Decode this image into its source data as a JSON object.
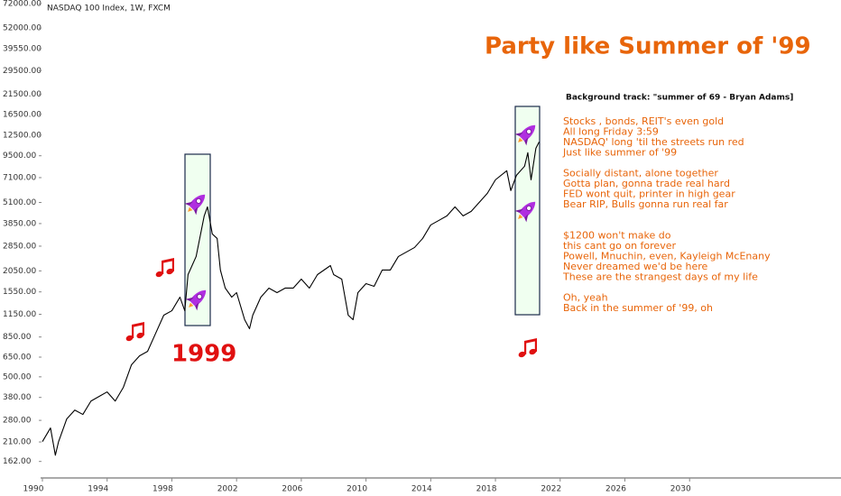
{
  "chart_data": {
    "type": "line",
    "title": "NASDAQ 100 Index, 1W, FXCM",
    "log_scale": true,
    "color": "#000000",
    "xlim": [
      1990,
      2039
    ],
    "ylim": [
      130,
      76000
    ],
    "xticks": [
      1990,
      1994,
      1998,
      2002,
      2006,
      2010,
      2014,
      2018,
      2022,
      2026,
      2030
    ],
    "yticks": [
      {
        "value": 72000,
        "label": "72000.00"
      },
      {
        "value": 52000,
        "label": "52000.00"
      },
      {
        "value": 39550,
        "label": "39550.00"
      },
      {
        "value": 29500,
        "label": "29500.00"
      },
      {
        "value": 21500,
        "label": "21500.00"
      },
      {
        "value": 16500,
        "label": "16500.00"
      },
      {
        "value": 12500,
        "label": "12500.00"
      },
      {
        "value": 9500,
        "label": "9500.00"
      },
      {
        "value": 7100,
        "label": "7100.00"
      },
      {
        "value": 5100,
        "label": "5100.00"
      },
      {
        "value": 3850,
        "label": "3850.00"
      },
      {
        "value": 2850,
        "label": "2850.00"
      },
      {
        "value": 2050,
        "label": "2050.00"
      },
      {
        "value": 1550,
        "label": "1550.00"
      },
      {
        "value": 1150,
        "label": "1150.00"
      },
      {
        "value": 850,
        "label": "850.00"
      },
      {
        "value": 650,
        "label": "650.00"
      },
      {
        "value": 500,
        "label": "500.00"
      },
      {
        "value": 380,
        "label": "380.00"
      },
      {
        "value": 280,
        "label": "280.00"
      },
      {
        "value": 210,
        "label": "210.00"
      },
      {
        "value": 162,
        "label": "162.00"
      }
    ],
    "x": [
      1990.0,
      1990.5,
      1990.8,
      1991.0,
      1991.5,
      1992.0,
      1992.5,
      1993.0,
      1993.5,
      1994.0,
      1994.5,
      1995.0,
      1995.5,
      1996.0,
      1996.5,
      1997.0,
      1997.5,
      1998.0,
      1998.5,
      1998.8,
      1999.0,
      1999.5,
      2000.0,
      2000.2,
      2000.5,
      2000.8,
      2001.0,
      2001.3,
      2001.7,
      2002.0,
      2002.5,
      2002.8,
      2003.0,
      2003.5,
      2004.0,
      2004.5,
      2005.0,
      2005.5,
      2006.0,
      2006.5,
      2007.0,
      2007.8,
      2008.0,
      2008.5,
      2008.9,
      2009.2,
      2009.5,
      2010.0,
      2010.5,
      2011.0,
      2011.5,
      2012.0,
      2012.5,
      2013.0,
      2013.5,
      2014.0,
      2014.5,
      2015.0,
      2015.5,
      2016.0,
      2016.5,
      2017.0,
      2017.5,
      2018.0,
      2018.7,
      2018.95,
      2019.3,
      2019.8,
      2020.0,
      2020.2,
      2020.5,
      2020.7
    ],
    "values": [
      211,
      253,
      176,
      211,
      285,
      321,
      303,
      362,
      385,
      409,
      362,
      434,
      586,
      661,
      702,
      893,
      1136,
      1206,
      1445,
      1206,
      1951,
      2483,
      4264,
      4810,
      3353,
      3157,
      2073,
      1630,
      1445,
      1535,
      1070,
      949,
      1136,
      1445,
      1630,
      1535,
      1630,
      1630,
      1838,
      1630,
      1951,
      2200,
      1951,
      1838,
      1136,
      1070,
      1535,
      1730,
      1669,
      2073,
      2073,
      2483,
      2636,
      2800,
      3157,
      3781,
      4015,
      4264,
      4810,
      4264,
      4529,
      5108,
      5760,
      6898,
      7780,
      5972,
      7325,
      8264,
      9895,
      6898,
      10507,
      11429
    ],
    "annotations": {
      "headline": "Party like Summer of '99",
      "track": "Background track: \"summer of 69 - Bryan Adams]",
      "year": "1999",
      "lyrics": [
        [
          "Stocks , bonds, REIT's even gold",
          "All  long Friday  3:59",
          "NASDAQ' long 'til the streets run red",
          "Just  like  summer of '99"
        ],
        [
          "Socially distant, alone together",
          "Gotta plan,  gonna trade real hard",
          "FED wont quit, printer in high gear",
          "Bear RIP,  Bulls gonna run real far"
        ],
        [
          "$1200 won't make do",
          "this cant go on forever",
          "Powell,  Mnuchin, even, Kayleigh McEnany",
          "Never dreamed we'd be here",
          "These are the strangest days of my life"
        ],
        [
          "Oh, yeah",
          "Back in the summer of '99, oh"
        ]
      ]
    }
  }
}
